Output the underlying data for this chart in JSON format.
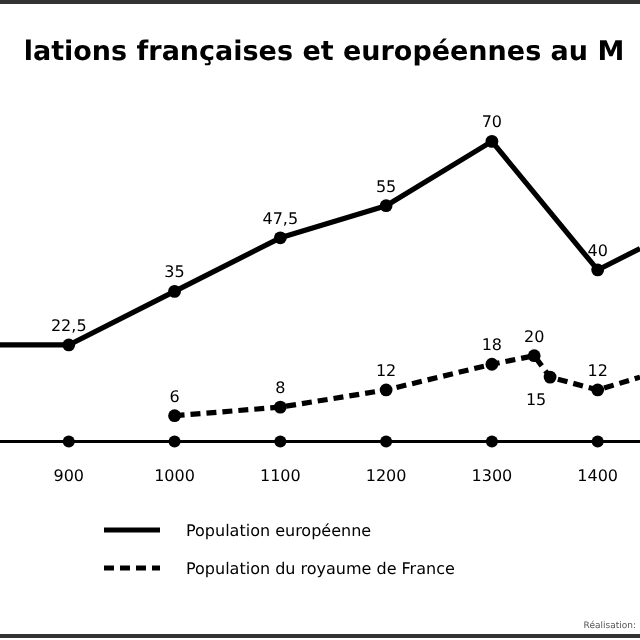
{
  "chart_data": {
    "type": "line",
    "title": "lations françaises et européennes au M",
    "annotations": [
      "Réalisation:"
    ],
    "xlim": [
      835,
      1440
    ],
    "xticks": [
      900,
      1000,
      1100,
      1200,
      1300,
      1400
    ],
    "tick_labels": "x",
    "legend": "bottom",
    "marker": "circle",
    "data_labels": true,
    "series": [
      {
        "name": "Population européenne",
        "color": "#000000",
        "line_style": "solid",
        "x": [
          835,
          900,
          1000,
          1100,
          1200,
          1300,
          1400,
          1440
        ],
        "values": [
          22.5,
          22.5,
          35,
          47.5,
          55,
          70,
          40,
          45
        ],
        "value_labels": [
          null,
          "22,5",
          "35",
          "47,5",
          "55",
          "70",
          "40",
          null
        ]
      },
      {
        "name": "Population du royaume de France",
        "color": "#000000",
        "line_style": "dashed",
        "x": [
          1000,
          1100,
          1200,
          1300,
          1340,
          1355,
          1400,
          1440
        ],
        "values": [
          6,
          8,
          12,
          18,
          20,
          15,
          12,
          15
        ],
        "value_labels": [
          "6",
          "8",
          "12",
          "18",
          "20",
          "15",
          "12",
          null
        ]
      }
    ]
  }
}
